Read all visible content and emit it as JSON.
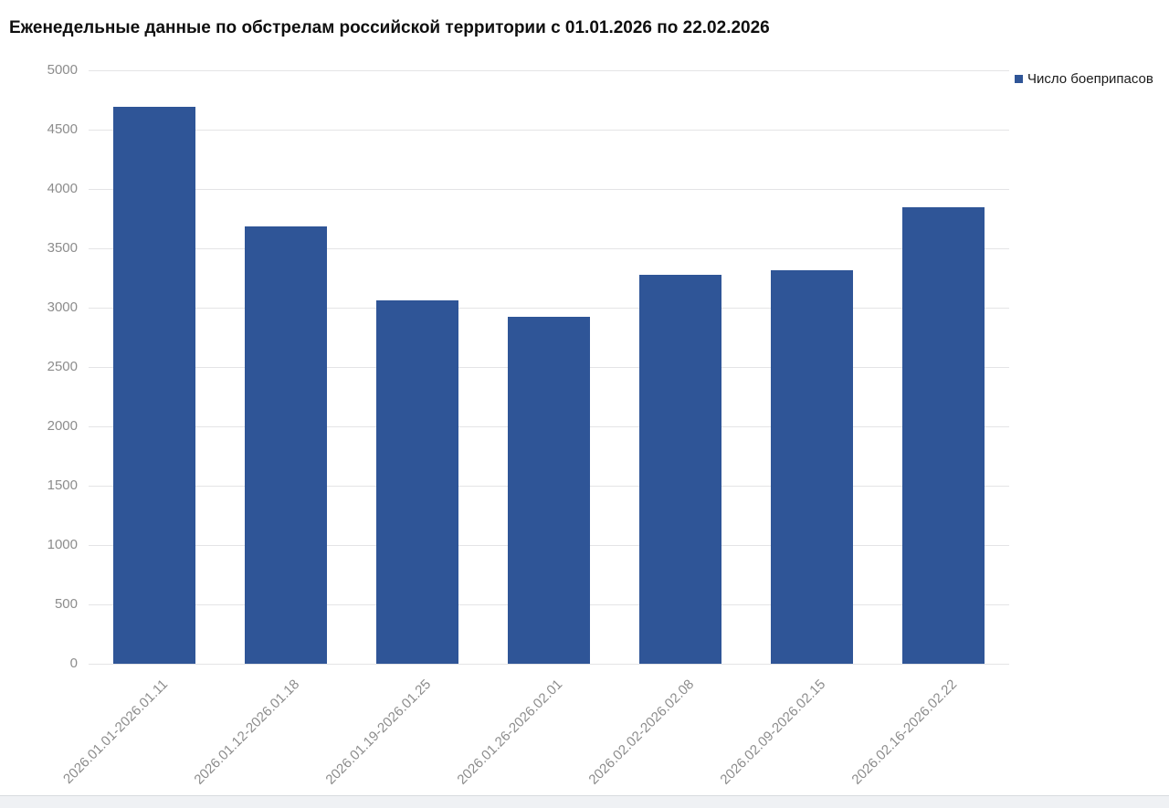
{
  "header": {
    "title": "Еженедельные данные по обстрелам российской территории с 01.01.2026 по 22.02.2026"
  },
  "legend": {
    "label": "Число боеприпасов",
    "swatch_color": "#2F5597"
  },
  "chart_data": {
    "type": "bar",
    "title": "Еженедельные данные по обстрелам российской территории с 01.01.2026 по 22.02.2026",
    "categories": [
      "2026.01.01-2026.01.11",
      "2026.01.12-2026.01.18",
      "2026.01.19-2026.01.25",
      "2026.01.26-2026.02.01",
      "2026.02.02-2026.02.08",
      "2026.02.09-2026.02.15",
      "2026.02.16-2026.02.22"
    ],
    "series": [
      {
        "name": "Число боеприпасов",
        "values": [
          4695,
          3685,
          3060,
          2925,
          3280,
          3315,
          3850
        ]
      }
    ],
    "xlabel": "",
    "ylabel": "",
    "ylim": [
      0,
      5000
    ],
    "yticks": [
      0,
      500,
      1000,
      1500,
      2000,
      2500,
      3000,
      3500,
      4000,
      4500,
      5000
    ],
    "grid": true,
    "legend_position": "top-right",
    "x_label_rotation_deg": 45,
    "bar_color": "#2F5597",
    "gridline_color": "#e4e4e6",
    "axis_label_color": "#8c8c8c"
  },
  "footer": {
    "strip_color": "#eff1f4",
    "strip_border_color": "#d8dbdf"
  }
}
